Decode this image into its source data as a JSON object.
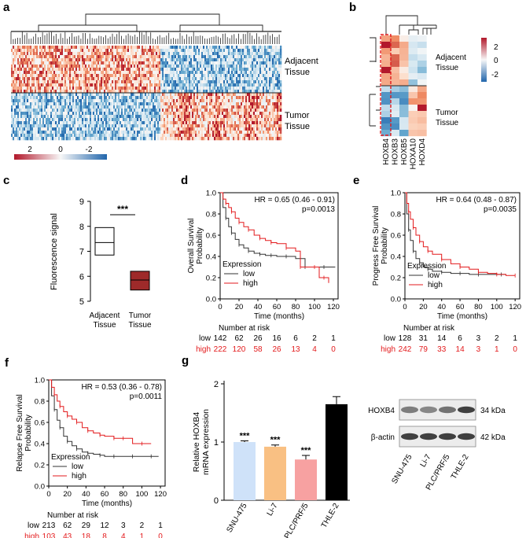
{
  "colors": {
    "hot": "#b2182b",
    "warm": "#ef8a62",
    "light_warm": "#fddbc7",
    "neutral": "#f7f7f7",
    "light_cool": "#d1e5f0",
    "cool": "#67a9cf",
    "cold": "#2166ac",
    "km_low": "#333333",
    "km_high": "#e31a1c",
    "bar_snu": "#cfe2f9",
    "bar_li7": "#f9c083",
    "bar_plc": "#f7a1a1",
    "bar_thle": "#000000",
    "box_tumor": "#9e2a2a",
    "highlight": "#e31a1c"
  },
  "panels": {
    "a": {
      "label": "a",
      "groups": [
        "Adjacent\nTissue",
        "Tumor\nTissue"
      ],
      "group_lines": [
        [
          "Adjacent",
          "Tissue"
        ],
        [
          "Tumor",
          "Tissue"
        ]
      ],
      "colorbar_ticks": [
        "2",
        "0",
        "-2"
      ]
    },
    "b": {
      "label": "b",
      "genes": [
        "HOXB4",
        "HOXB3",
        "HOXB5",
        "HOXA10",
        "HOXD4"
      ],
      "group_lines": [
        [
          "Adjacent",
          "Tissue"
        ],
        [
          "Tumor",
          "Tissue"
        ]
      ],
      "colorbar_ticks": [
        "2",
        "0",
        "-2"
      ]
    },
    "c": {
      "label": "c",
      "chart_data": {
        "type": "box",
        "ylabel": "Fluorescence signal",
        "ylim": [
          5,
          9
        ],
        "yticks": [
          "5",
          "6",
          "7",
          "8",
          "9"
        ],
        "categories": [
          [
            "Adjacent",
            "Tissue"
          ],
          [
            "Tumor",
            "Tissue"
          ]
        ],
        "boxes": [
          {
            "name": "Adjacent Tissue",
            "low": 6.85,
            "median": 7.35,
            "high": 7.95
          },
          {
            "name": "Tumor Tissue",
            "low": 5.45,
            "median": 5.85,
            "high": 6.2
          }
        ],
        "significance": "***"
      }
    },
    "d": {
      "label": "d",
      "chart_data": {
        "type": "line",
        "ylabel": [
          "Overall Survival",
          "Probability"
        ],
        "xlabel": "Time (months)",
        "xlim": [
          0,
          125
        ],
        "ylim": [
          0,
          1
        ],
        "xticks": [
          "0",
          "20",
          "40",
          "60",
          "80",
          "100",
          "120"
        ],
        "yticks": [
          "0.0",
          "0.2",
          "0.4",
          "0.6",
          "0.8",
          "1.0"
        ],
        "hr": "HR = 0.65 (0.46 - 0.91)",
        "p": "p=0.0013",
        "legend_title": "Expression",
        "series": [
          {
            "name": "low",
            "x": [
              0,
              3,
              6,
              9,
              12,
              16,
              20,
              25,
              30,
              36,
              42,
              48,
              54,
              60,
              70,
              80,
              90,
              100,
              110,
              122
            ],
            "y": [
              1,
              0.86,
              0.76,
              0.68,
              0.62,
              0.56,
              0.51,
              0.48,
              0.45,
              0.43,
              0.42,
              0.41,
              0.41,
              0.4,
              0.4,
              0.38,
              0.3,
              0.3,
              0.3,
              0.3
            ]
          },
          {
            "name": "high",
            "x": [
              0,
              3,
              6,
              9,
              12,
              16,
              20,
              25,
              30,
              36,
              42,
              48,
              54,
              60,
              70,
              80,
              85,
              90,
              100,
              105,
              110,
              115
            ],
            "y": [
              1,
              0.94,
              0.9,
              0.86,
              0.82,
              0.76,
              0.72,
              0.68,
              0.65,
              0.6,
              0.57,
              0.55,
              0.53,
              0.52,
              0.48,
              0.45,
              0.3,
              0.3,
              0.3,
              0.2,
              0.2,
              0.15
            ]
          }
        ],
        "risk_title": "Number at risk",
        "risk": [
          {
            "name": "low",
            "values": [
              "142",
              "62",
              "26",
              "16",
              "6",
              "2",
              "1"
            ]
          },
          {
            "name": "high",
            "values": [
              "222",
              "120",
              "58",
              "26",
              "13",
              "4",
              "0"
            ]
          }
        ]
      }
    },
    "e": {
      "label": "e",
      "chart_data": {
        "type": "line",
        "ylabel": [
          "Progress Free Survival",
          "Probability"
        ],
        "xlabel": "Time (months)",
        "xlim": [
          0,
          125
        ],
        "ylim": [
          0,
          1
        ],
        "xticks": [
          "0",
          "20",
          "40",
          "60",
          "80",
          "100",
          "120"
        ],
        "yticks": [
          "0.0",
          "0.2",
          "0.4",
          "0.6",
          "0.8",
          "1.0"
        ],
        "hr": "HR = 0.64 (0.48 - 0.87)",
        "p": "p=0.0035",
        "legend_title": "Expression",
        "series": [
          {
            "name": "low",
            "x": [
              0,
              2,
              4,
              6,
              9,
              12,
              16,
              20,
              25,
              30,
              40,
              50,
              60,
              70,
              80,
              95,
              105,
              110
            ],
            "y": [
              1,
              0.8,
              0.65,
              0.55,
              0.45,
              0.38,
              0.34,
              0.3,
              0.28,
              0.26,
              0.25,
              0.24,
              0.24,
              0.23,
              0.23,
              0.23,
              0.23,
              0.23
            ]
          },
          {
            "name": "high",
            "x": [
              0,
              2,
              4,
              6,
              9,
              12,
              16,
              20,
              25,
              30,
              40,
              50,
              60,
              70,
              80,
              90,
              100,
              110,
              120
            ],
            "y": [
              1,
              0.9,
              0.82,
              0.75,
              0.67,
              0.6,
              0.54,
              0.49,
              0.45,
              0.42,
              0.37,
              0.33,
              0.3,
              0.28,
              0.25,
              0.24,
              0.23,
              0.22,
              0.22
            ]
          }
        ],
        "risk_title": "Number at risk",
        "risk": [
          {
            "name": "low",
            "values": [
              "128",
              "31",
              "14",
              "6",
              "3",
              "2",
              "1"
            ]
          },
          {
            "name": "high",
            "values": [
              "242",
              "79",
              "33",
              "14",
              "3",
              "1",
              "0"
            ]
          }
        ]
      }
    },
    "f": {
      "label": "f",
      "chart_data": {
        "type": "line",
        "ylabel": [
          "Relapse Free Survival",
          "Probability"
        ],
        "xlabel": "Time (months)",
        "xlim": [
          0,
          125
        ],
        "ylim": [
          0,
          1
        ],
        "xticks": [
          "0",
          "20",
          "40",
          "60",
          "80",
          "100",
          "120"
        ],
        "yticks": [
          "0.0",
          "0.2",
          "0.4",
          "0.6",
          "0.8",
          "1.0"
        ],
        "hr": "HR = 0.53 (0.36 - 0.78)",
        "p": "p=0.0011",
        "legend_title": "Expression",
        "series": [
          {
            "name": "low",
            "x": [
              0,
              3,
              6,
              9,
              12,
              16,
              20,
              25,
              30,
              36,
              42,
              48,
              55,
              60,
              70,
              80,
              90,
              100,
              110,
              118
            ],
            "y": [
              1,
              0.85,
              0.72,
              0.62,
              0.55,
              0.47,
              0.42,
              0.38,
              0.35,
              0.32,
              0.31,
              0.3,
              0.29,
              0.28,
              0.28,
              0.28,
              0.28,
              0.28,
              0.28,
              0.28
            ]
          },
          {
            "name": "high",
            "x": [
              0,
              3,
              6,
              9,
              12,
              16,
              20,
              25,
              30,
              36,
              42,
              48,
              55,
              60,
              70,
              75,
              80,
              90,
              100,
              110
            ],
            "y": [
              1,
              0.93,
              0.86,
              0.8,
              0.75,
              0.7,
              0.66,
              0.63,
              0.6,
              0.55,
              0.52,
              0.5,
              0.48,
              0.47,
              0.45,
              0.45,
              0.45,
              0.4,
              0.4,
              0.4
            ]
          }
        ],
        "risk_title": "Number at risk",
        "risk": [
          {
            "name": "low",
            "values": [
              "213",
              "62",
              "29",
              "12",
              "3",
              "2",
              "1"
            ]
          },
          {
            "name": "high",
            "values": [
              "103",
              "43",
              "18",
              "8",
              "4",
              "1",
              "0"
            ]
          }
        ]
      }
    },
    "g": {
      "label": "g",
      "chart_data": {
        "type": "bar",
        "ylabel": [
          "Relative HOXB4",
          "mRNA expression"
        ],
        "ylim": [
          0,
          2
        ],
        "yticks": [
          "0",
          "1",
          "2"
        ],
        "categories": [
          "SNU-475",
          "Li-7",
          "PLC/PRF/5",
          "THLE-2"
        ],
        "values": [
          1.0,
          0.92,
          0.7,
          1.65
        ],
        "errors": [
          0.02,
          0.03,
          0.07,
          0.13
        ],
        "significance": [
          "***",
          "***",
          "***",
          ""
        ]
      },
      "blot": {
        "rows": [
          {
            "protein": "HOXB4",
            "size": "34 kDa"
          },
          {
            "protein": "β-actin",
            "size": "42 kDa"
          }
        ],
        "lanes": [
          "SNU-475",
          "Li-7",
          "PLC/PRF/5",
          "THLE-2"
        ],
        "hoxb4_intensity": [
          0.55,
          0.5,
          0.6,
          0.85
        ],
        "actin_intensity": [
          0.85,
          0.85,
          0.85,
          0.85
        ]
      }
    }
  }
}
